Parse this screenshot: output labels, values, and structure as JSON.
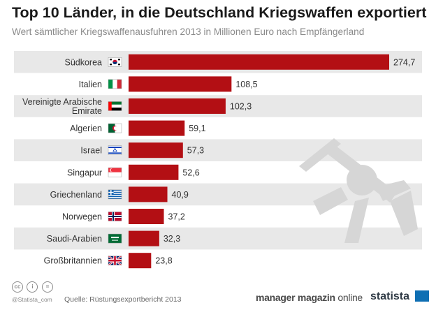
{
  "title": "Top 10 Länder, in die Deutschland Kriegswaffen exportiert",
  "subtitle": "Wert sämtlicher Kriegswaffenausfuhren 2013 in Millionen Euro nach Empfängerland",
  "colors": {
    "bar": "#b30f14",
    "stripe": "#e8e8e8",
    "gun": "#d6d6d6",
    "accent_blue": "#0f6fb3"
  },
  "chart_data": {
    "type": "bar",
    "orientation": "horizontal",
    "title": "Top 10 Länder, in die Deutschland Kriegswaffen exportiert",
    "subtitle": "Wert sämtlicher Kriegswaffenausfuhren 2013 in Millionen Euro nach Empfängerland",
    "categories": [
      "Südkorea",
      "Italien",
      "Vereinigte Arabische Emirate",
      "Algerien",
      "Israel",
      "Singapur",
      "Griechenland",
      "Norwegen",
      "Saudi-Arabien",
      "Großbritannien"
    ],
    "category_lines": [
      [
        "Südkorea"
      ],
      [
        "Italien"
      ],
      [
        "Vereinigte Arabische",
        "Emirate"
      ],
      [
        "Algerien"
      ],
      [
        "Israel"
      ],
      [
        "Singapur"
      ],
      [
        "Griechenland"
      ],
      [
        "Norwegen"
      ],
      [
        "Saudi-Arabien"
      ],
      [
        "Großbritannien"
      ]
    ],
    "values": [
      274.7,
      108.5,
      102.3,
      59.1,
      57.3,
      52.6,
      40.9,
      37.2,
      32.3,
      23.8
    ],
    "value_labels": [
      "274,7",
      "108,5",
      "102,3",
      "59,1",
      "57,3",
      "52,6",
      "40,9",
      "37,2",
      "32,3",
      "23,8"
    ],
    "flags": [
      "south-korea-flag",
      "italy-flag",
      "uae-flag",
      "algeria-flag",
      "israel-flag",
      "singapore-flag",
      "greece-flag",
      "norway-flag",
      "saudi-arabia-flag",
      "uk-flag"
    ],
    "xlim": [
      0,
      274.7
    ],
    "grid": false,
    "striped_rows": true
  },
  "footer": {
    "license_icons": [
      "cc",
      "i",
      "="
    ],
    "handle": "@Statista_com",
    "source": "Quelle: Rüstungsexportbericht 2013",
    "brand_manager_bold": "manager magazin",
    "brand_manager_light": " online",
    "brand_statista": "statista"
  }
}
